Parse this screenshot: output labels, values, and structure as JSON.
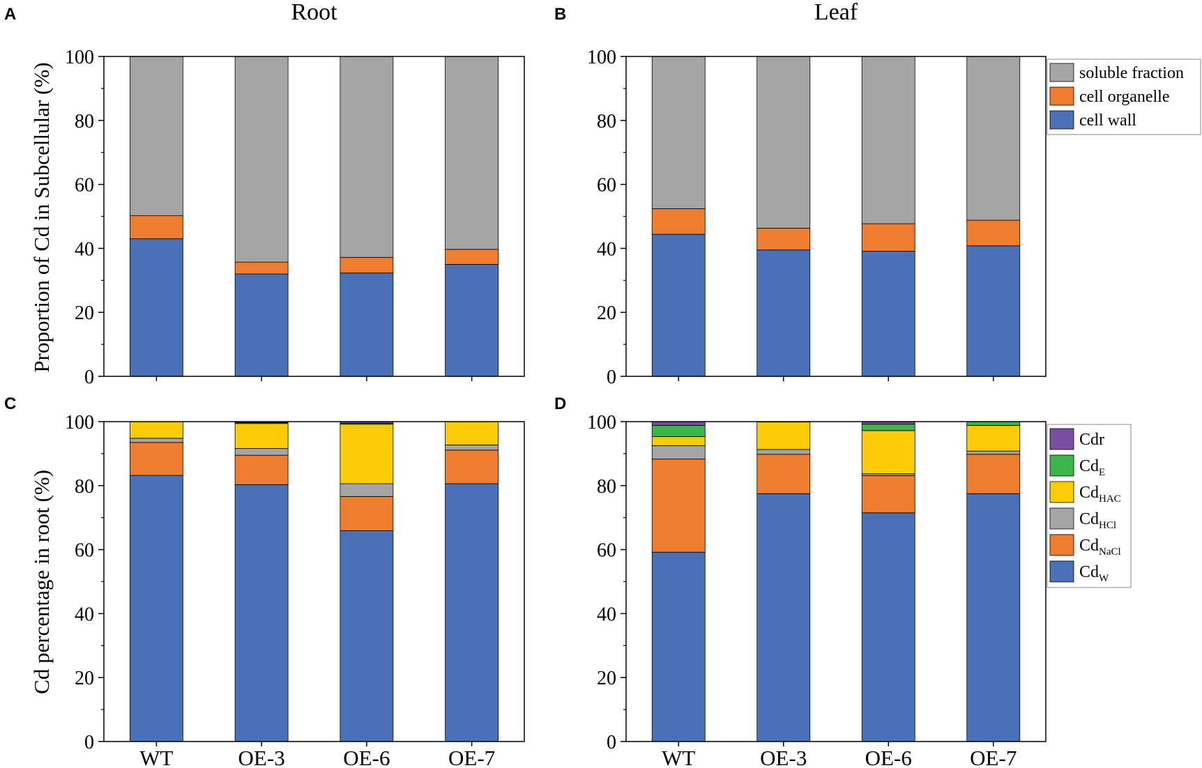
{
  "panel_letters": [
    "A",
    "B",
    "C",
    "D"
  ],
  "chart_data": [
    {
      "panel": "A",
      "type": "bar",
      "stacked": true,
      "title": "Root",
      "ylabel": "Proportion of Cd in Subcellular (%)",
      "ylim": [
        0,
        100
      ],
      "yticks": [
        "0",
        "20",
        "40",
        "60",
        "80",
        "100"
      ],
      "categories": [
        "WT",
        "OE-3",
        "OE-6",
        "OE-7"
      ],
      "show_xticklabels": false,
      "series": [
        {
          "name": "cell wall",
          "color": "#4a71b7",
          "values": [
            43.0,
            32.0,
            32.3,
            35.0
          ]
        },
        {
          "name": "cell organelle",
          "color": "#ee7d32",
          "values": [
            7.2,
            3.7,
            4.9,
            4.7
          ]
        },
        {
          "name": "soluble fraction",
          "color": "#a5a5a5",
          "values": [
            49.8,
            64.3,
            62.8,
            60.3
          ]
        }
      ],
      "legend": null
    },
    {
      "panel": "B",
      "type": "bar",
      "stacked": true,
      "title": "Leaf",
      "ylabel": "",
      "ylim": [
        0,
        100
      ],
      "yticks": [
        "0",
        "20",
        "40",
        "60",
        "80",
        "100"
      ],
      "categories": [
        "WT",
        "OE-3",
        "OE-6",
        "OE-7"
      ],
      "show_xticklabels": false,
      "series": [
        {
          "name": "cell wall",
          "color": "#4a71b7",
          "values": [
            44.4,
            39.5,
            39.1,
            40.8
          ]
        },
        {
          "name": "cell organelle",
          "color": "#ee7d32",
          "values": [
            8.0,
            6.8,
            8.6,
            8.0
          ]
        },
        {
          "name": "soluble fraction",
          "color": "#a5a5a5",
          "values": [
            47.6,
            53.7,
            52.3,
            51.2
          ]
        }
      ],
      "legend": {
        "placement": "top-right",
        "entries": [
          {
            "label": "soluble fraction",
            "sub": "",
            "color": "#a5a5a5"
          },
          {
            "label": "cell organelle",
            "sub": "",
            "color": "#ee7d32"
          },
          {
            "label": "cell wall",
            "sub": "",
            "color": "#4a71b7"
          }
        ]
      }
    },
    {
      "panel": "C",
      "type": "bar",
      "stacked": true,
      "title": "",
      "ylabel": "Cd percentage in root (%)",
      "ylim": [
        0,
        100
      ],
      "yticks": [
        "0",
        "20",
        "40",
        "60",
        "80",
        "100"
      ],
      "categories": [
        "WT",
        "OE-3",
        "OE-6",
        "OE-7"
      ],
      "show_xticklabels": true,
      "series": [
        {
          "name": "CdW",
          "color": "#4a71b7",
          "values": [
            83.2,
            80.3,
            65.9,
            80.6
          ]
        },
        {
          "name": "CdNaCl",
          "color": "#ee7d32",
          "values": [
            10.3,
            9.2,
            10.7,
            10.5
          ]
        },
        {
          "name": "CdHCl",
          "color": "#a5a5a5",
          "values": [
            1.3,
            2.1,
            4.0,
            1.6
          ]
        },
        {
          "name": "CdHAC",
          "color": "#fecb08",
          "values": [
            5.2,
            7.8,
            18.6,
            7.3
          ]
        },
        {
          "name": "CdE",
          "color": "#3cb54a",
          "values": [
            0.0,
            0.3,
            0.3,
            0.0
          ]
        },
        {
          "name": "Cdr",
          "color": "#7a4ea3",
          "values": [
            0.0,
            0.3,
            0.5,
            0.0
          ]
        }
      ],
      "legend": null
    },
    {
      "panel": "D",
      "type": "bar",
      "stacked": true,
      "title": "",
      "ylabel": "",
      "ylim": [
        0,
        100
      ],
      "yticks": [
        "0",
        "20",
        "40",
        "60",
        "80",
        "100"
      ],
      "categories": [
        "WT",
        "OE-3",
        "OE-6",
        "OE-7"
      ],
      "show_xticklabels": true,
      "series": [
        {
          "name": "CdW",
          "color": "#4a71b7",
          "values": [
            59.2,
            77.5,
            71.5,
            77.5
          ]
        },
        {
          "name": "CdNaCl",
          "color": "#ee7d32",
          "values": [
            29.1,
            12.3,
            11.6,
            12.3
          ]
        },
        {
          "name": "CdHCl",
          "color": "#a5a5a5",
          "values": [
            4.2,
            1.5,
            0.6,
            1.0
          ]
        },
        {
          "name": "CdHAC",
          "color": "#fecb08",
          "values": [
            2.8,
            8.6,
            13.5,
            8.0
          ]
        },
        {
          "name": "CdE",
          "color": "#3cb54a",
          "values": [
            3.5,
            0.0,
            2.0,
            1.2
          ]
        },
        {
          "name": "Cdr",
          "color": "#7a4ea3",
          "values": [
            1.2,
            0.1,
            0.8,
            0.0
          ]
        }
      ],
      "legend": {
        "placement": "top-right",
        "entries": [
          {
            "label": "Cdr",
            "sub": "",
            "color": "#7a4ea3"
          },
          {
            "label": "Cd",
            "sub": "E",
            "color": "#3cb54a"
          },
          {
            "label": "Cd",
            "sub": "HAC",
            "color": "#fecb08"
          },
          {
            "label": "Cd",
            "sub": "HCl",
            "color": "#a5a5a5"
          },
          {
            "label": "Cd",
            "sub": "NaCl",
            "color": "#ee7d32"
          },
          {
            "label": "Cd",
            "sub": "W",
            "color": "#4a71b7"
          }
        ]
      }
    }
  ]
}
